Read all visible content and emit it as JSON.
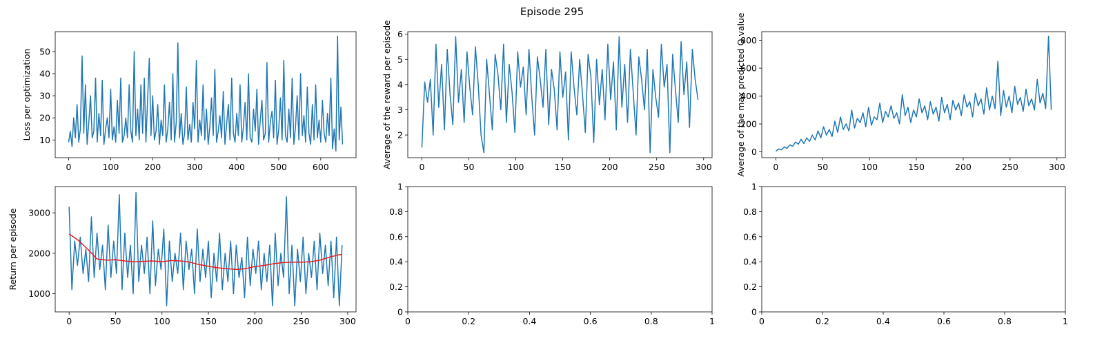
{
  "figure": {
    "title": "Episode 295"
  },
  "colors": {
    "line": "#1f77b4",
    "smooth": "#e41a1c"
  },
  "chart_data": [
    {
      "type": "line",
      "ylabel": "Loss per optimization",
      "xlim": [
        -32,
        684
      ],
      "ylim": [
        2,
        59
      ],
      "xticks": [
        0,
        100,
        200,
        300,
        400,
        500,
        600
      ],
      "yticks": [
        10,
        20,
        30,
        40,
        50
      ],
      "series": [
        {
          "x": [
            0,
            4,
            8,
            12,
            16,
            20,
            24,
            28,
            32,
            36,
            40,
            44,
            48,
            52,
            56,
            60,
            64,
            68,
            72,
            76,
            80,
            84,
            88,
            92,
            96,
            100,
            104,
            108,
            112,
            116,
            120,
            124,
            128,
            132,
            136,
            140,
            144,
            148,
            152,
            156,
            160,
            164,
            168,
            172,
            176,
            180,
            184,
            188,
            192,
            196,
            200,
            204,
            208,
            212,
            216,
            220,
            224,
            228,
            232,
            236,
            240,
            244,
            248,
            252,
            256,
            260,
            264,
            268,
            272,
            276,
            280,
            284,
            288,
            292,
            296,
            300,
            304,
            308,
            312,
            316,
            320,
            324,
            328,
            332,
            336,
            340,
            344,
            348,
            352,
            356,
            360,
            364,
            368,
            372,
            376,
            380,
            384,
            388,
            392,
            396,
            400,
            404,
            408,
            412,
            416,
            420,
            424,
            428,
            432,
            436,
            440,
            444,
            448,
            452,
            456,
            460,
            464,
            468,
            472,
            476,
            480,
            484,
            488,
            492,
            496,
            500,
            504,
            508,
            512,
            516,
            520,
            524,
            528,
            532,
            536,
            540,
            544,
            548,
            552,
            556,
            560,
            564,
            568,
            572,
            576,
            580,
            584,
            588,
            592,
            596,
            600,
            604,
            608,
            612,
            616,
            620,
            624,
            628,
            632,
            636,
            640,
            644,
            648,
            652
          ],
          "y": [
            9,
            14,
            7,
            20,
            11,
            26,
            9,
            15,
            48,
            13,
            35,
            8,
            18,
            30,
            11,
            14,
            38,
            9,
            22,
            12,
            37,
            8,
            15,
            20,
            11,
            33,
            10,
            16,
            9,
            28,
            13,
            38,
            9,
            12,
            20,
            11,
            35,
            14,
            9,
            50,
            12,
            24,
            10,
            35,
            13,
            38,
            9,
            29,
            47,
            12,
            30,
            10,
            14,
            26,
            8,
            19,
            12,
            35,
            9,
            15,
            27,
            10,
            40,
            9,
            18,
            54,
            11,
            22,
            8,
            13,
            34,
            10,
            17,
            9,
            27,
            15,
            46,
            9,
            19,
            12,
            35,
            10,
            24,
            8,
            16,
            29,
            12,
            42,
            9,
            14,
            21,
            11,
            32,
            8,
            17,
            26,
            10,
            38,
            13,
            9,
            22,
            12,
            35,
            9,
            16,
            27,
            10,
            40,
            11,
            9,
            24,
            14,
            33,
            8,
            19,
            28,
            10,
            13,
            45,
            9,
            18,
            23,
            11,
            37,
            8,
            15,
            29,
            10,
            46,
            12,
            9,
            24,
            11,
            38,
            8,
            16,
            30,
            10,
            40,
            12,
            21,
            9,
            34,
            13,
            8,
            26,
            10,
            35,
            11,
            19,
            9,
            28,
            13,
            9,
            22,
            12,
            38,
            6,
            15,
            5,
            57,
            10,
            25,
            8
          ]
        }
      ]
    },
    {
      "type": "line",
      "ylabel": "Average of the reward per episode",
      "xlim": [
        -15,
        309
      ],
      "ylim": [
        1.1,
        6.1
      ],
      "xticks": [
        0,
        50,
        100,
        150,
        200,
        250,
        300
      ],
      "yticks": [
        2,
        3,
        4,
        5,
        6
      ],
      "series": [
        {
          "x": [
            0,
            3,
            6,
            9,
            12,
            15,
            18,
            21,
            24,
            27,
            30,
            33,
            36,
            39,
            42,
            45,
            48,
            51,
            54,
            57,
            60,
            63,
            66,
            69,
            72,
            75,
            78,
            81,
            84,
            87,
            90,
            93,
            96,
            99,
            102,
            105,
            108,
            111,
            114,
            117,
            120,
            123,
            126,
            129,
            132,
            135,
            138,
            141,
            144,
            147,
            150,
            153,
            156,
            159,
            162,
            165,
            168,
            171,
            174,
            177,
            180,
            183,
            186,
            189,
            192,
            195,
            198,
            201,
            204,
            207,
            210,
            213,
            216,
            219,
            222,
            225,
            228,
            231,
            234,
            237,
            240,
            243,
            246,
            249,
            252,
            255,
            258,
            261,
            264,
            267,
            270,
            273,
            276,
            279,
            282,
            285,
            288,
            291,
            294
          ],
          "y": [
            1.5,
            4.1,
            3.3,
            4.2,
            2.0,
            5.6,
            3.1,
            4.8,
            2.2,
            5.4,
            3.6,
            2.4,
            5.9,
            3.3,
            4.6,
            2.5,
            5.3,
            3.9,
            2.8,
            5.5,
            4.0,
            2.0,
            1.3,
            5.0,
            3.6,
            2.2,
            5.2,
            4.4,
            3.0,
            5.6,
            2.5,
            4.8,
            3.7,
            2.1,
            5.3,
            3.9,
            4.7,
            2.8,
            5.4,
            3.5,
            2.0,
            5.1,
            4.2,
            3.1,
            5.4,
            2.4,
            4.6,
            3.8,
            2.2,
            5.3,
            3.5,
            4.5,
            1.8,
            5.3,
            3.9,
            2.8,
            5.0,
            3.6,
            2.1,
            5.2,
            4.3,
            1.7,
            5.0,
            3.2,
            4.6,
            2.6,
            5.6,
            3.4,
            4.9,
            2.2,
            5.9,
            3.1,
            4.8,
            2.5,
            5.4,
            3.7,
            2.0,
            5.1,
            4.2,
            3.0,
            5.4,
            1.3,
            4.6,
            3.5,
            2.7,
            5.6,
            3.9,
            4.8,
            1.3,
            5.2,
            3.8,
            2.5,
            5.7,
            3.6,
            4.9,
            2.3,
            5.4,
            4.2,
            3.4
          ]
        }
      ]
    },
    {
      "type": "line",
      "ylabel": "Average of the max predicted Q value",
      "xlim": [
        -15,
        309
      ],
      "ylim": [
        -42,
        862
      ],
      "xticks": [
        0,
        50,
        100,
        150,
        200,
        250,
        300
      ],
      "yticks": [
        0,
        200,
        400,
        600,
        800
      ],
      "series": [
        {
          "x": [
            0,
            3,
            6,
            9,
            12,
            15,
            18,
            21,
            24,
            27,
            30,
            33,
            36,
            39,
            42,
            45,
            48,
            51,
            54,
            57,
            60,
            63,
            66,
            69,
            72,
            75,
            78,
            81,
            84,
            87,
            90,
            93,
            96,
            99,
            102,
            105,
            108,
            111,
            114,
            117,
            120,
            123,
            126,
            129,
            132,
            135,
            138,
            141,
            144,
            147,
            150,
            153,
            156,
            159,
            162,
            165,
            168,
            171,
            174,
            177,
            180,
            183,
            186,
            189,
            192,
            195,
            198,
            201,
            204,
            207,
            210,
            213,
            216,
            219,
            222,
            225,
            228,
            231,
            234,
            237,
            240,
            243,
            246,
            249,
            252,
            255,
            258,
            261,
            264,
            267,
            270,
            273,
            276,
            279,
            282,
            285,
            288,
            291,
            294
          ],
          "y": [
            5,
            20,
            15,
            35,
            25,
            50,
            40,
            70,
            55,
            90,
            60,
            100,
            75,
            120,
            85,
            150,
            100,
            180,
            120,
            160,
            110,
            220,
            140,
            250,
            160,
            200,
            150,
            300,
            170,
            240,
            210,
            280,
            180,
            320,
            190,
            250,
            230,
            350,
            210,
            290,
            250,
            330,
            240,
            280,
            200,
            410,
            260,
            320,
            210,
            300,
            250,
            380,
            280,
            330,
            230,
            360,
            270,
            320,
            220,
            390,
            280,
            340,
            230,
            370,
            300,
            350,
            260,
            410,
            320,
            360,
            250,
            420,
            330,
            380,
            270,
            460,
            300,
            400,
            310,
            650,
            260,
            440,
            320,
            400,
            280,
            470,
            340,
            390,
            290,
            450,
            330,
            380,
            300,
            520,
            350,
            420,
            310,
            830,
            300
          ]
        }
      ]
    },
    {
      "type": "line",
      "ylabel": "Return per episode",
      "xlim": [
        -15,
        309
      ],
      "ylim": [
        550,
        3650
      ],
      "xticks": [
        0,
        50,
        100,
        150,
        200,
        250,
        300
      ],
      "yticks": [
        1000,
        2000,
        3000
      ],
      "series": [
        {
          "x": [
            0,
            3,
            6,
            9,
            12,
            15,
            18,
            21,
            24,
            27,
            30,
            33,
            36,
            39,
            42,
            45,
            48,
            51,
            54,
            57,
            60,
            63,
            66,
            69,
            72,
            75,
            78,
            81,
            84,
            87,
            90,
            93,
            96,
            99,
            102,
            105,
            108,
            111,
            114,
            117,
            120,
            123,
            126,
            129,
            132,
            135,
            138,
            141,
            144,
            147,
            150,
            153,
            156,
            159,
            162,
            165,
            168,
            171,
            174,
            177,
            180,
            183,
            186,
            189,
            192,
            195,
            198,
            201,
            204,
            207,
            210,
            213,
            216,
            219,
            222,
            225,
            228,
            231,
            234,
            237,
            240,
            243,
            246,
            249,
            252,
            255,
            258,
            261,
            264,
            267,
            270,
            273,
            276,
            279,
            282,
            285,
            288,
            291,
            294
          ],
          "y": [
            3150,
            1100,
            2300,
            1700,
            2400,
            1500,
            2100,
            1300,
            2900,
            1400,
            2500,
            1600,
            2200,
            1100,
            2700,
            1400,
            2300,
            1500,
            3450,
            1100,
            2500,
            1400,
            2200,
            1000,
            3500,
            1300,
            2200,
            1500,
            2400,
            1000,
            2800,
            1200,
            2100,
            1600,
            2600,
            700,
            2300,
            1300,
            2000,
            1500,
            2500,
            1100,
            2300,
            1600,
            2100,
            1000,
            2600,
            1300,
            2100,
            1400,
            2300,
            900,
            2000,
            1300,
            2500,
            1100,
            2000,
            1300,
            2300,
            1000,
            2200,
            1400,
            1900,
            900,
            2400,
            1200,
            2100,
            1500,
            2300,
            1100,
            2000,
            1300,
            2200,
            700,
            2500,
            1200,
            2000,
            1400,
            3400,
            1000,
            2200,
            700,
            2100,
            1300,
            2400,
            1000,
            2000,
            1400,
            2300,
            1100,
            2500,
            1500,
            2200,
            1200,
            2300,
            900,
            2400,
            700,
            2200
          ]
        },
        {
          "x": [
            0,
            10,
            20,
            30,
            40,
            50,
            60,
            70,
            80,
            90,
            100,
            110,
            120,
            130,
            140,
            150,
            160,
            170,
            180,
            190,
            200,
            210,
            220,
            230,
            240,
            250,
            260,
            270,
            280,
            290,
            294
          ],
          "y": [
            2480,
            2320,
            2100,
            1860,
            1830,
            1840,
            1810,
            1790,
            1800,
            1810,
            1790,
            1820,
            1810,
            1780,
            1720,
            1680,
            1640,
            1620,
            1600,
            1620,
            1670,
            1700,
            1740,
            1770,
            1780,
            1780,
            1790,
            1830,
            1900,
            1960,
            1970
          ]
        }
      ]
    },
    {
      "type": "line",
      "xlim": [
        0,
        1
      ],
      "ylim": [
        0,
        1
      ],
      "xticks": [
        0.0,
        0.2,
        0.4,
        0.6,
        0.8,
        1.0
      ],
      "yticks": [
        0.0,
        0.2,
        0.4,
        0.6,
        0.8,
        1.0
      ],
      "series": []
    },
    {
      "type": "line",
      "xlim": [
        0,
        1
      ],
      "ylim": [
        0,
        1
      ],
      "xticks": [
        0.0,
        0.2,
        0.4,
        0.6,
        0.8,
        1.0
      ],
      "yticks": [
        0.0,
        0.2,
        0.4,
        0.6,
        0.8,
        1.0
      ],
      "series": []
    }
  ]
}
